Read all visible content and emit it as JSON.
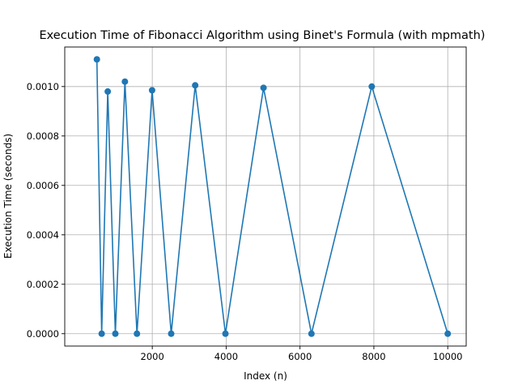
{
  "chart_data": {
    "type": "line",
    "title": "Execution Time of Fibonacci Algorithm using Binet's Formula (with mpmath)",
    "xlabel": "Index (n)",
    "ylabel": "Execution Time (seconds)",
    "xlim": [
      -370,
      10500
    ],
    "ylim": [
      -5e-05,
      0.00116
    ],
    "xticks": [
      {
        "value": 2000,
        "label": "2000"
      },
      {
        "value": 4000,
        "label": "4000"
      },
      {
        "value": 6000,
        "label": "6000"
      },
      {
        "value": 8000,
        "label": "8000"
      },
      {
        "value": 10000,
        "label": "10000"
      }
    ],
    "yticks": [
      {
        "value": 0.0,
        "label": "0.0000"
      },
      {
        "value": 0.0002,
        "label": "0.0002"
      },
      {
        "value": 0.0004,
        "label": "0.0004"
      },
      {
        "value": 0.0006,
        "label": "0.0006"
      },
      {
        "value": 0.0008,
        "label": "0.0008"
      },
      {
        "value": 0.001,
        "label": "0.0010"
      }
    ],
    "grid": true,
    "marker": "circle",
    "series": [
      {
        "color": "#1f77b4",
        "x": [
          500,
          630,
          794,
          1000,
          1259,
          1585,
          1995,
          2512,
          3162,
          3981,
          5012,
          6310,
          7943,
          10000
        ],
        "y": [
          0.00111,
          0.0,
          0.00098,
          0.0,
          0.00102,
          0.0,
          0.000985,
          0.0,
          0.001005,
          0.0,
          0.000995,
          0.0,
          0.001,
          0.0
        ]
      }
    ]
  }
}
